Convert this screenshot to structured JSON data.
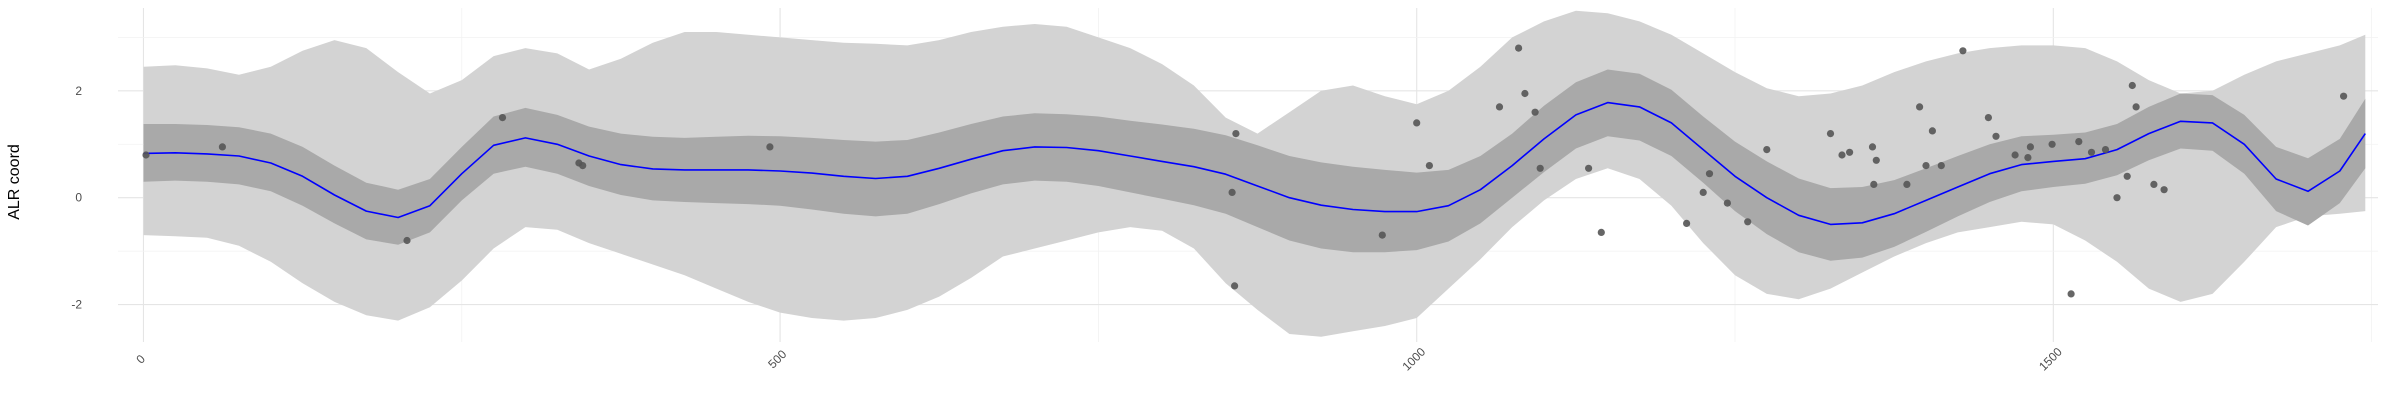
{
  "chart_data": {
    "type": "line",
    "ylabel": "ALR coord",
    "xlim": [
      -20,
      1755
    ],
    "ylim": [
      -2.7,
      3.55
    ],
    "x_ticks": [
      0,
      500,
      1000,
      1500
    ],
    "x_tick_labels": [
      "0",
      "500",
      "1000",
      "1500"
    ],
    "y_ticks": [
      -2,
      0,
      2
    ],
    "y_tick_labels": [
      "-2",
      "0",
      "2"
    ],
    "grid": true,
    "colors": {
      "mean_line": "#0000ff",
      "inner_band": "#a9a9a9",
      "outer_band": "#d3d3d3",
      "points": "#555555"
    },
    "series": [
      {
        "type": "line",
        "x": [
          0,
          25,
          50,
          75,
          100,
          125,
          150,
          175,
          200,
          225,
          250,
          275,
          300,
          325,
          350,
          375,
          400,
          425,
          450,
          475,
          500,
          525,
          550,
          575,
          600,
          625,
          650,
          675,
          700,
          725,
          750,
          775,
          800,
          825,
          850,
          875,
          900,
          925,
          950,
          975,
          1000,
          1025,
          1050,
          1075,
          1100,
          1125,
          1150,
          1175,
          1200,
          1225,
          1250,
          1275,
          1300,
          1325,
          1350,
          1375,
          1400,
          1425,
          1450,
          1475,
          1500,
          1525,
          1550,
          1575,
          1600,
          1625,
          1650,
          1675,
          1700,
          1725,
          1745
        ],
        "y": [
          0.83,
          0.84,
          0.82,
          0.78,
          0.65,
          0.4,
          0.05,
          -0.25,
          -0.37,
          -0.15,
          0.45,
          0.98,
          1.12,
          1.0,
          0.78,
          0.62,
          0.54,
          0.52,
          0.52,
          0.52,
          0.5,
          0.46,
          0.4,
          0.36,
          0.4,
          0.55,
          0.72,
          0.88,
          0.95,
          0.94,
          0.88,
          0.78,
          0.68,
          0.58,
          0.44,
          0.22,
          0.0,
          -0.14,
          -0.22,
          -0.26,
          -0.26,
          -0.15,
          0.15,
          0.6,
          1.1,
          1.55,
          1.78,
          1.7,
          1.4,
          0.9,
          0.4,
          0.0,
          -0.33,
          -0.5,
          -0.47,
          -0.3,
          -0.05,
          0.2,
          0.45,
          0.62,
          0.68,
          0.73,
          0.9,
          1.2,
          1.43,
          1.4,
          1.0,
          0.35,
          0.12,
          0.5,
          1.2
        ]
      },
      {
        "type": "band",
        "x": [
          0,
          25,
          50,
          75,
          100,
          125,
          150,
          175,
          200,
          225,
          250,
          275,
          300,
          325,
          350,
          375,
          400,
          425,
          450,
          475,
          500,
          525,
          550,
          575,
          600,
          625,
          650,
          675,
          700,
          725,
          750,
          775,
          800,
          825,
          850,
          875,
          900,
          925,
          950,
          975,
          1000,
          1025,
          1050,
          1075,
          1100,
          1125,
          1150,
          1175,
          1200,
          1225,
          1250,
          1275,
          1300,
          1325,
          1350,
          1375,
          1400,
          1425,
          1450,
          1475,
          1500,
          1525,
          1550,
          1575,
          1600,
          1625,
          1650,
          1675,
          1700,
          1725,
          1745
        ],
        "lower": [
          0.3,
          0.32,
          0.3,
          0.25,
          0.12,
          -0.15,
          -0.48,
          -0.78,
          -0.88,
          -0.65,
          -0.05,
          0.45,
          0.58,
          0.45,
          0.22,
          0.05,
          -0.05,
          -0.08,
          -0.1,
          -0.12,
          -0.15,
          -0.22,
          -0.3,
          -0.35,
          -0.3,
          -0.12,
          0.08,
          0.25,
          0.32,
          0.3,
          0.22,
          0.1,
          -0.02,
          -0.14,
          -0.3,
          -0.55,
          -0.8,
          -0.95,
          -1.02,
          -1.02,
          -0.98,
          -0.82,
          -0.48,
          0.0,
          0.48,
          0.92,
          1.15,
          1.07,
          0.78,
          0.28,
          -0.25,
          -0.68,
          -1.02,
          -1.18,
          -1.12,
          -0.92,
          -0.64,
          -0.35,
          -0.08,
          0.12,
          0.2,
          0.26,
          0.42,
          0.7,
          0.92,
          0.88,
          0.45,
          -0.25,
          -0.52,
          -0.1,
          0.55
        ],
        "upper": [
          1.38,
          1.38,
          1.36,
          1.32,
          1.2,
          0.95,
          0.6,
          0.28,
          0.15,
          0.35,
          0.95,
          1.52,
          1.68,
          1.55,
          1.33,
          1.2,
          1.14,
          1.12,
          1.14,
          1.16,
          1.15,
          1.12,
          1.08,
          1.05,
          1.08,
          1.22,
          1.38,
          1.52,
          1.58,
          1.56,
          1.52,
          1.44,
          1.37,
          1.29,
          1.17,
          0.98,
          0.78,
          0.66,
          0.58,
          0.52,
          0.47,
          0.52,
          0.78,
          1.2,
          1.72,
          2.16,
          2.4,
          2.32,
          2.02,
          1.52,
          1.05,
          0.68,
          0.36,
          0.18,
          0.2,
          0.33,
          0.55,
          0.78,
          1.0,
          1.15,
          1.18,
          1.22,
          1.38,
          1.7,
          1.95,
          1.92,
          1.55,
          0.95,
          0.74,
          1.1,
          1.85
        ]
      },
      {
        "type": "band",
        "x": [
          0,
          25,
          50,
          75,
          100,
          125,
          150,
          175,
          200,
          225,
          250,
          275,
          300,
          325,
          350,
          375,
          400,
          425,
          450,
          475,
          500,
          525,
          550,
          575,
          600,
          625,
          650,
          675,
          700,
          725,
          750,
          775,
          800,
          825,
          850,
          875,
          900,
          925,
          950,
          975,
          1000,
          1025,
          1050,
          1075,
          1100,
          1125,
          1150,
          1175,
          1200,
          1225,
          1250,
          1275,
          1300,
          1325,
          1350,
          1375,
          1400,
          1425,
          1450,
          1475,
          1500,
          1525,
          1550,
          1575,
          1600,
          1625,
          1650,
          1675,
          1700,
          1725,
          1745
        ],
        "lower": [
          -0.7,
          -0.72,
          -0.75,
          -0.9,
          -1.2,
          -1.6,
          -1.95,
          -2.2,
          -2.3,
          -2.05,
          -1.55,
          -0.95,
          -0.55,
          -0.6,
          -0.85,
          -1.05,
          -1.25,
          -1.45,
          -1.7,
          -1.95,
          -2.15,
          -2.25,
          -2.3,
          -2.25,
          -2.1,
          -1.85,
          -1.5,
          -1.1,
          -0.95,
          -0.8,
          -0.65,
          -0.55,
          -0.62,
          -0.95,
          -1.6,
          -2.1,
          -2.55,
          -2.6,
          -2.5,
          -2.4,
          -2.25,
          -1.7,
          -1.15,
          -0.55,
          -0.05,
          0.35,
          0.55,
          0.35,
          -0.15,
          -0.85,
          -1.45,
          -1.8,
          -1.9,
          -1.7,
          -1.4,
          -1.1,
          -0.85,
          -0.65,
          -0.55,
          -0.45,
          -0.5,
          -0.8,
          -1.2,
          -1.7,
          -1.95,
          -1.8,
          -1.2,
          -0.55,
          -0.35,
          -0.3,
          -0.25
        ],
        "upper": [
          2.45,
          2.48,
          2.42,
          2.3,
          2.45,
          2.75,
          2.95,
          2.8,
          2.35,
          1.95,
          2.2,
          2.65,
          2.8,
          2.7,
          2.4,
          2.6,
          2.9,
          3.1,
          3.1,
          3.05,
          3.0,
          2.95,
          2.9,
          2.88,
          2.85,
          2.95,
          3.1,
          3.2,
          3.25,
          3.2,
          3.0,
          2.8,
          2.5,
          2.1,
          1.5,
          1.2,
          1.6,
          2.0,
          2.1,
          1.9,
          1.75,
          2.0,
          2.45,
          3.0,
          3.3,
          3.5,
          3.45,
          3.3,
          3.05,
          2.7,
          2.35,
          2.05,
          1.9,
          1.95,
          2.1,
          2.35,
          2.55,
          2.7,
          2.8,
          2.85,
          2.85,
          2.8,
          2.55,
          2.2,
          1.95,
          2.0,
          2.3,
          2.55,
          2.7,
          2.85,
          3.05
        ]
      },
      {
        "type": "scatter",
        "x": [
          2,
          62,
          207,
          282,
          342,
          345,
          492,
          855,
          857,
          858,
          973,
          1000,
          1010,
          1065,
          1080,
          1085,
          1093,
          1097,
          1135,
          1145,
          1212,
          1225,
          1230,
          1244,
          1260,
          1275,
          1325,
          1334,
          1340,
          1358,
          1359,
          1361,
          1385,
          1395,
          1400,
          1405,
          1412,
          1429,
          1449,
          1455,
          1470,
          1480,
          1482,
          1499,
          1514,
          1520,
          1530,
          1541,
          1550,
          1558,
          1562,
          1565,
          1579,
          1587,
          1728
        ],
        "y": [
          0.8,
          0.95,
          -0.8,
          1.5,
          0.65,
          0.6,
          0.95,
          0.1,
          -1.65,
          1.2,
          -0.7,
          1.4,
          0.6,
          1.7,
          2.8,
          1.95,
          1.6,
          0.55,
          0.55,
          -0.65,
          -0.48,
          0.1,
          0.45,
          -0.1,
          -0.45,
          0.9,
          1.2,
          0.8,
          0.85,
          0.95,
          0.25,
          0.7,
          0.25,
          1.7,
          0.6,
          1.25,
          0.6,
          2.75,
          1.5,
          1.15,
          0.8,
          0.75,
          0.95,
          1.0,
          -1.8,
          1.05,
          0.85,
          0.9,
          0.0,
          0.4,
          2.1,
          1.7,
          0.25,
          0.15,
          1.9
        ]
      }
    ]
  }
}
